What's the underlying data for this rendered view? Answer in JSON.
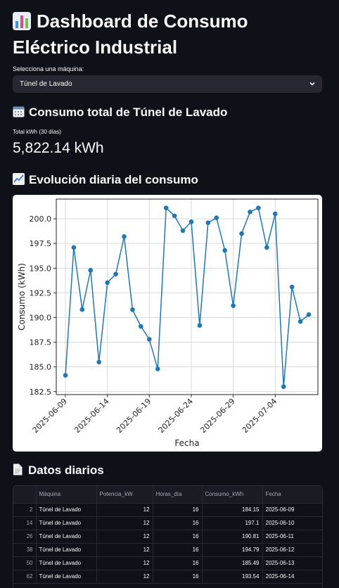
{
  "header": {
    "title_line1": "Dashboard de Consumo",
    "title_line2": "Eléctrico Industrial",
    "title_icon": "bar-chart-icon"
  },
  "machine_select": {
    "label": "Selecciona una máquina:",
    "value": "Túnel de Lavado"
  },
  "total_section": {
    "icon": "calendar-icon",
    "heading": "Consumo total de Túnel de Lavado",
    "metric_label": "Total kWh (30 días)",
    "metric_value": "5,822.14 kWh"
  },
  "chart_section": {
    "icon": "chart-increasing-icon",
    "heading": "Evolución diaria del consumo"
  },
  "chart_data": {
    "type": "line",
    "title": "",
    "xlabel": "Fecha",
    "ylabel": "Consumo (kWh)",
    "ylim": [
      182.2,
      202.0
    ],
    "yticks": [
      182.5,
      185.0,
      187.5,
      190.0,
      192.5,
      195.0,
      197.5,
      200.0
    ],
    "ytick_labels": [
      "182.5",
      "185.0",
      "187.5",
      "190.0",
      "192.5",
      "195.0",
      "197.5",
      "200.0"
    ],
    "xtick_labels": [
      "2025-06-09",
      "2025-06-14",
      "2025-06-19",
      "2025-06-24",
      "2025-06-29",
      "2025-07-04"
    ],
    "grid": true,
    "color": "#1f77b4",
    "x": [
      "2025-06-09",
      "2025-06-10",
      "2025-06-11",
      "2025-06-12",
      "2025-06-13",
      "2025-06-14",
      "2025-06-15",
      "2025-06-16",
      "2025-06-17",
      "2025-06-18",
      "2025-06-19",
      "2025-06-20",
      "2025-06-21",
      "2025-06-22",
      "2025-06-23",
      "2025-06-24",
      "2025-06-25",
      "2025-06-26",
      "2025-06-27",
      "2025-06-28",
      "2025-06-29",
      "2025-06-30",
      "2025-07-01",
      "2025-07-02",
      "2025-07-03",
      "2025-07-04",
      "2025-07-05",
      "2025-07-06",
      "2025-07-07",
      "2025-07-08"
    ],
    "values": [
      184.15,
      197.1,
      190.81,
      194.79,
      185.49,
      193.54,
      194.4,
      198.2,
      190.8,
      189.1,
      187.8,
      184.8,
      201.1,
      200.3,
      198.8,
      199.7,
      189.2,
      199.6,
      200.1,
      196.8,
      191.2,
      198.5,
      200.7,
      201.1,
      197.1,
      200.5,
      183.0,
      193.1,
      189.6,
      190.3
    ]
  },
  "table_section": {
    "icon": "page-icon",
    "heading": "Datos diarios",
    "columns": [
      "",
      "Máquina",
      "Potencia_kW",
      "Horas_día",
      "Consumo_kWh",
      "Fecha"
    ],
    "rows": [
      [
        "2",
        "Túnel de Lavado",
        "12",
        "16",
        "184.15",
        "2025-06-09"
      ],
      [
        "14",
        "Túnel de Lavado",
        "12",
        "16",
        "197.1",
        "2025-06-10"
      ],
      [
        "26",
        "Túnel de Lavado",
        "12",
        "16",
        "190.81",
        "2025-06-11"
      ],
      [
        "38",
        "Túnel de Lavado",
        "12",
        "16",
        "194.79",
        "2025-06-12"
      ],
      [
        "50",
        "Túnel de Lavado",
        "12",
        "16",
        "185.49",
        "2025-06-13"
      ],
      [
        "62",
        "Túnel de Lavado",
        "12",
        "16",
        "193.54",
        "2025-06-14"
      ]
    ]
  }
}
